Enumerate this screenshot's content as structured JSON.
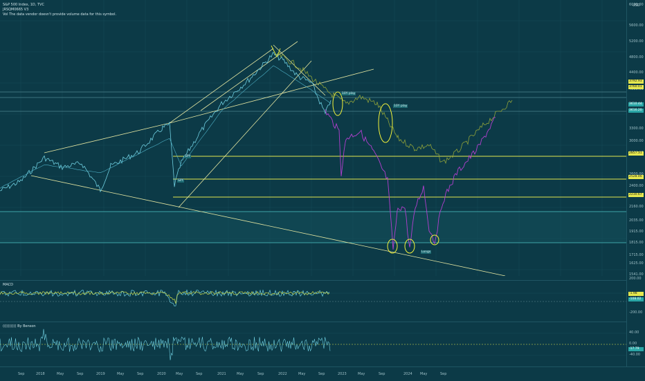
{
  "header": {
    "symbol_line": "S&P 500 Index, 1D, TVC",
    "script_line": "JRSQM0665 V3",
    "vol_line": "Vol  The data vendor doesn't provide volume data for this symbol."
  },
  "annotations": {
    "low_label": "Longs",
    "mid_label": "10Y play",
    "right_label": "10Y play",
    "left_label_1": "SPY",
    "left_label_2": "SPY"
  },
  "panes": {
    "macd_title": "MACD",
    "rsi_title": "(((((((((( By Benson"
  },
  "price_axis": {
    "currency": "USD",
    "ticks": [
      "6000.00",
      "5600.00",
      "5200.00",
      "4800.00",
      "4400.00",
      "4000.00",
      "3600.00",
      "3300.00",
      "3000.00",
      "2800.00",
      "2600.00",
      "2400.00",
      "2160.00",
      "2035.00",
      "1915.00",
      "1815.00",
      "1715.00",
      "1625.00",
      "1541.00"
    ],
    "tags": [
      {
        "text": "3792.93",
        "color": "#e5e84f",
        "fg": "#1b1b1b"
      },
      {
        "text": "3760.01",
        "color": "#e5e84f",
        "fg": "#1b1b1b"
      },
      {
        "text": "3610.44",
        "color": "#2aa6a6",
        "fg": "#ffffff"
      },
      {
        "text": "3616.20",
        "color": "#2aa6a6",
        "fg": "#ffffff"
      },
      {
        "text": "2857.31",
        "color": "#e5e84f",
        "fg": "#1b1b1b"
      },
      {
        "text": "2528.46",
        "color": "#e5e84f",
        "fg": "#1b1b1b"
      },
      {
        "text": "2230.67",
        "color": "#e5e84f",
        "fg": "#1b1b1b"
      }
    ],
    "macd_ticks": [
      "200.00",
      "-200.00"
    ],
    "macd_tags": [
      {
        "text": "-1.98",
        "color": "#e5e84f",
        "fg": "#1b1b1b"
      },
      {
        "text": "-108.02",
        "color": "#2aa6a6",
        "fg": "#ffffff"
      }
    ],
    "rsi_ticks": [
      "40.00",
      "0.00",
      "-40.00"
    ],
    "rsi_tags": [
      {
        "text": "-17.79",
        "color": "#2aa6a6",
        "fg": "#ffffff"
      }
    ]
  },
  "time_axis": {
    "labels": [
      "Sep",
      "2018",
      "May",
      "Sep",
      "2019",
      "May",
      "Sep",
      "2020",
      "May",
      "Sep",
      "2021",
      "May",
      "Sep",
      "2022",
      "May",
      "Sep",
      "2023",
      "May",
      "Sep",
      "2024",
      "May",
      "Sep"
    ]
  },
  "colors": {
    "price_line": "#6fcfe0",
    "projection_green": "#8fa23a",
    "projection_purple": "#b23fcf",
    "trend": "#e7e8a2",
    "level": "#e5e84f",
    "circle": "#f2f23a",
    "macd_line": "#6fcfe0",
    "macd_signal": "#c8d84a",
    "rsi_line": "#6fcfe0"
  }
}
